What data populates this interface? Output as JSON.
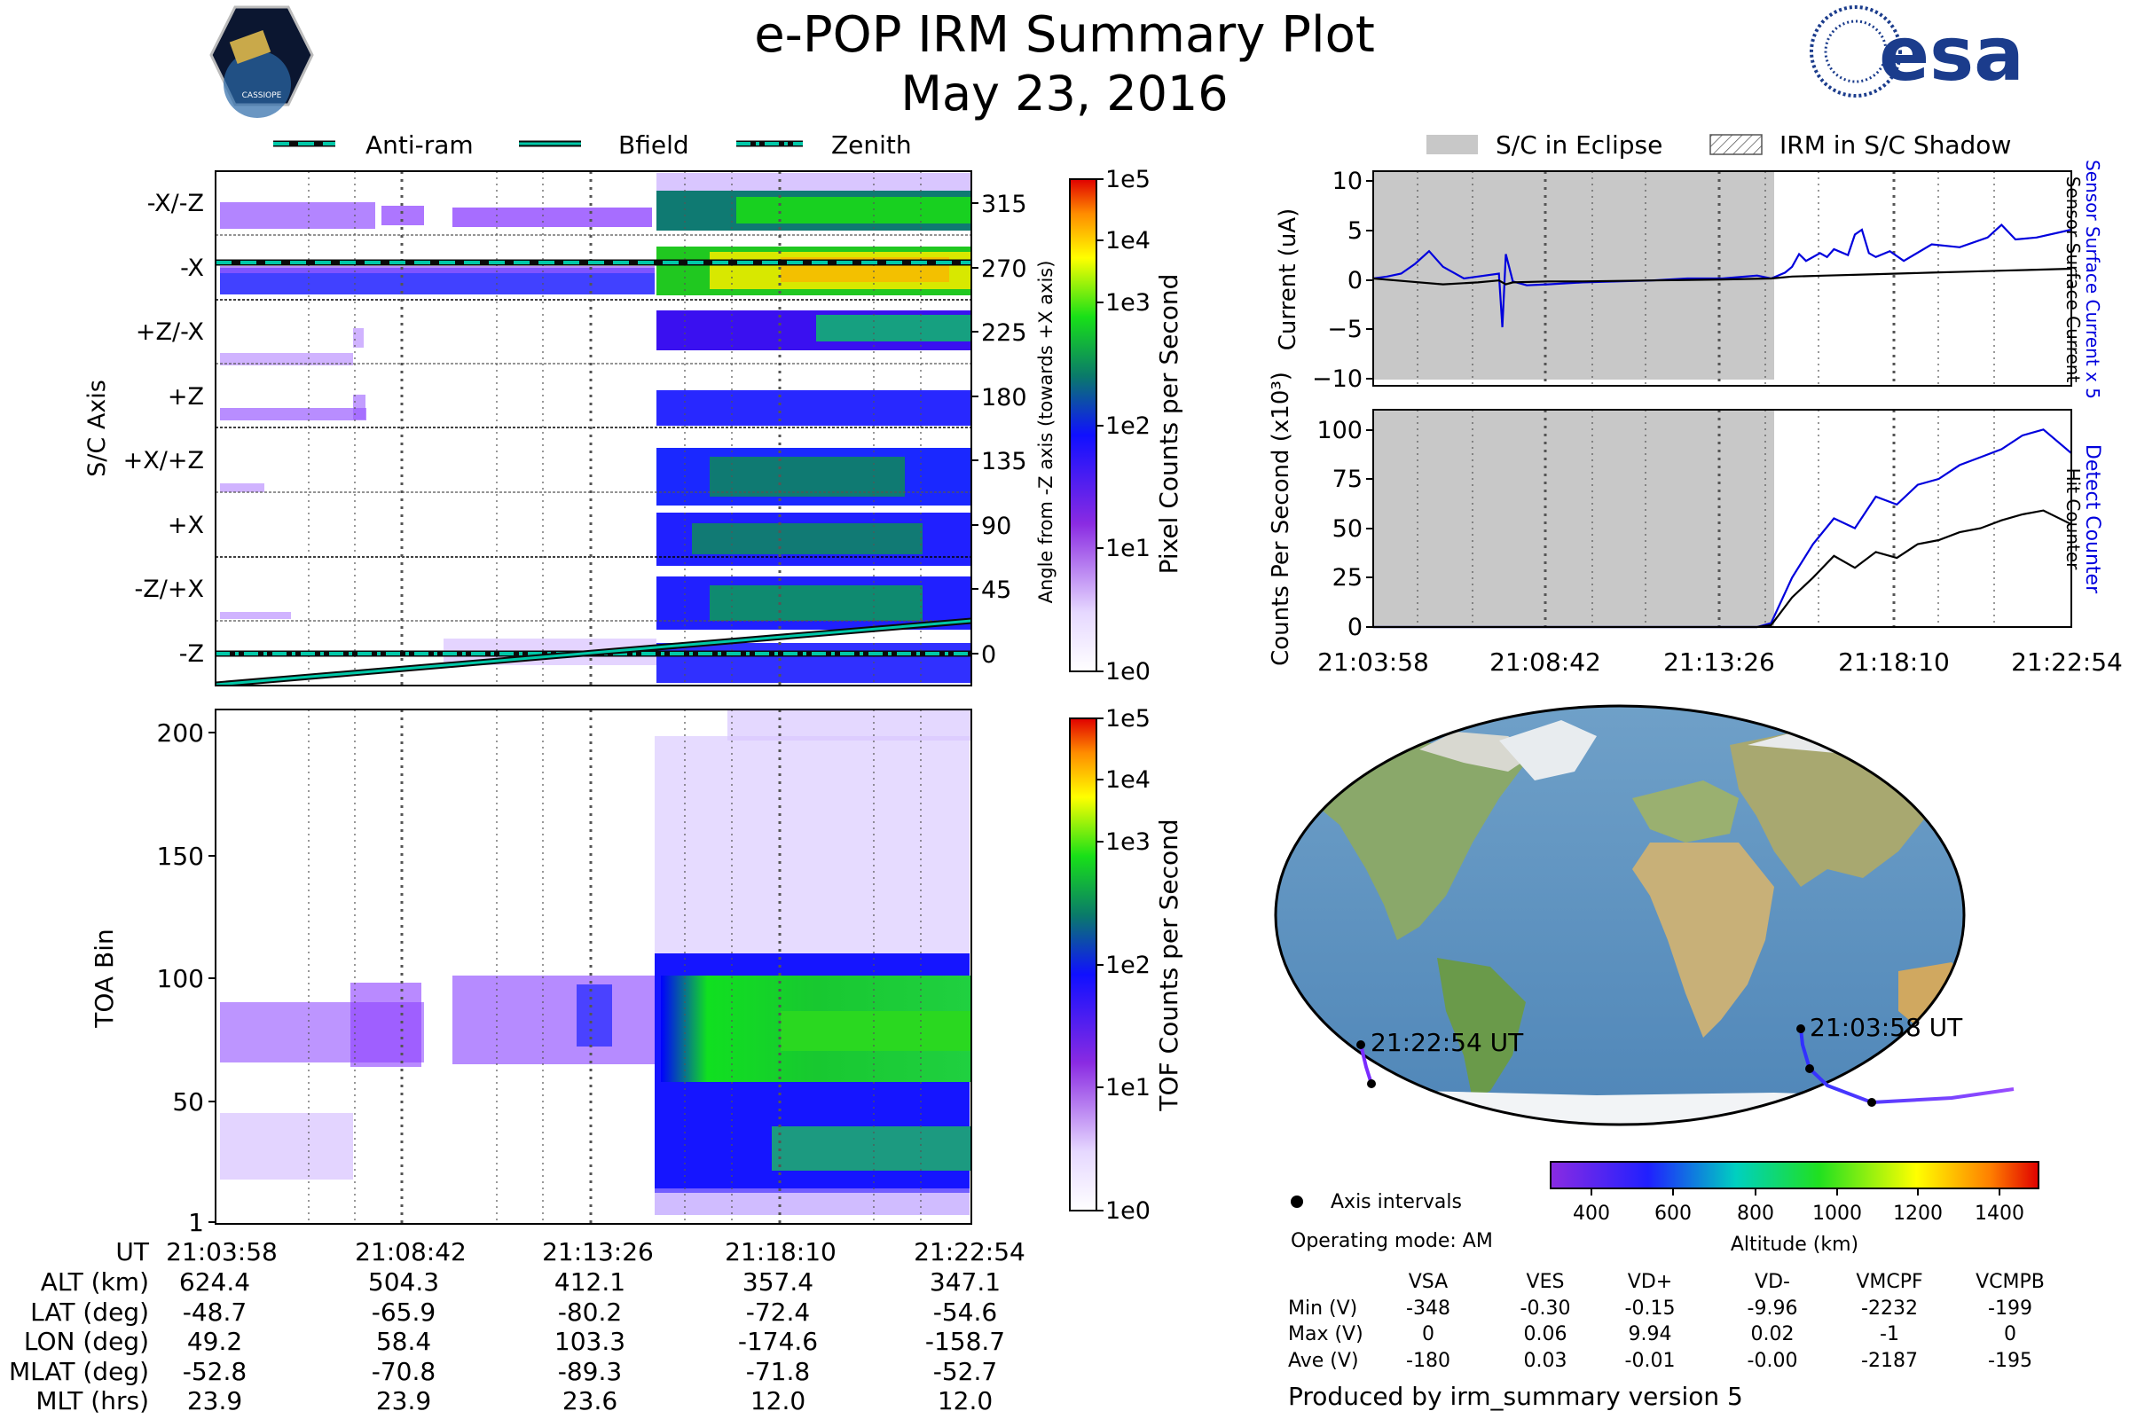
{
  "header": {
    "title": "e-POP IRM Summary Plot",
    "date": "May 23, 2016",
    "mission_logo_text": "CASSIOPE",
    "agency_logo_text": "esa"
  },
  "colors": {
    "dash_line": "#00c8a8",
    "current_blue": "#0000dd",
    "eclipse_gray": "#c8c8c8",
    "track_purple": "#7a2cff"
  },
  "legend_top_left": [
    {
      "label": "Anti-ram",
      "style": "dashed"
    },
    {
      "label": "Bfield",
      "style": "solid"
    },
    {
      "label": "Zenith",
      "style": "dashdot"
    }
  ],
  "legend_top_right": [
    {
      "label": "S/C in Eclipse",
      "style": "gray-fill"
    },
    {
      "label": "IRM in S/C Shadow",
      "style": "hatch"
    }
  ],
  "panel_axis": {
    "ylabel": "S/C Axis",
    "right_label": "Angle from -Z axis (towards +X axis)",
    "rows": [
      "-X/-Z",
      "-X",
      "+Z/-X",
      "+Z",
      "+X/+Z",
      "+X",
      "-Z/+X",
      "-Z"
    ],
    "right_ticks": [
      "315",
      "270",
      "225",
      "180",
      "135",
      "90",
      "45",
      "0"
    ],
    "colorbar_label": "Pixel Counts per Second",
    "colorbar_ticks": [
      "1e5",
      "1e4",
      "1e3",
      "1e2",
      "1e1",
      "1e0"
    ]
  },
  "panel_toa": {
    "ylabel": "TOA Bin",
    "yticks": [
      "200",
      "150",
      "100",
      "50",
      "1"
    ],
    "colorbar_label": "TOF Counts per Second",
    "colorbar_ticks": [
      "1e5",
      "1e4",
      "1e3",
      "1e2",
      "1e1",
      "1e0"
    ]
  },
  "ephemeris": {
    "rows": [
      {
        "label": "UT",
        "values": [
          "21:03:58",
          "21:08:42",
          "21:13:26",
          "21:18:10",
          "21:22:54"
        ]
      },
      {
        "label": "ALT (km)",
        "values": [
          "624.4",
          "504.3",
          "412.1",
          "357.4",
          "347.1"
        ]
      },
      {
        "label": "LAT (deg)",
        "values": [
          "-48.7",
          "-65.9",
          "-80.2",
          "-72.4",
          "-54.6"
        ]
      },
      {
        "label": "LON (deg)",
        "values": [
          "49.2",
          "58.4",
          "103.3",
          "-174.6",
          "-158.7"
        ]
      },
      {
        "label": "MLAT (deg)",
        "values": [
          "-52.8",
          "-70.8",
          "-89.3",
          "-71.8",
          "-52.7"
        ]
      },
      {
        "label": "MLT (hrs)",
        "values": [
          "23.9",
          "23.9",
          "23.6",
          "12.0",
          "12.0"
        ]
      }
    ]
  },
  "chart_data": [
    {
      "type": "line",
      "title": "Current",
      "ylabel": "Current (uA)",
      "ylim": [
        -11,
        11
      ],
      "yticks": [
        "10",
        "5",
        "0",
        "−5",
        "−10"
      ],
      "right_labels": [
        "Sensor Surface Current x 5",
        "Sensor Surface Current"
      ],
      "x_ticks": [
        "21:03:58",
        "21:08:42",
        "21:13:26",
        "21:18:10",
        "21:22:54"
      ],
      "eclipse_end_fraction": 0.57,
      "series": [
        {
          "name": "Sensor Surface Current x 5",
          "color": "#0000dd",
          "x_frac": [
            0,
            0.02,
            0.04,
            0.06,
            0.08,
            0.1,
            0.13,
            0.15,
            0.18,
            0.185,
            0.19,
            0.2,
            0.22,
            0.25,
            0.3,
            0.35,
            0.4,
            0.45,
            0.5,
            0.55,
            0.57,
            0.59,
            0.6,
            0.61,
            0.62,
            0.64,
            0.65,
            0.66,
            0.68,
            0.69,
            0.7,
            0.71,
            0.72,
            0.74,
            0.76,
            0.8,
            0.84,
            0.88,
            0.9,
            0.92,
            0.95,
            1.0
          ],
          "values": [
            0,
            0.2,
            0.5,
            1.5,
            2.8,
            1.2,
            0,
            0.2,
            0.5,
            -5,
            2.5,
            -0.3,
            -0.7,
            -0.6,
            -0.4,
            -0.3,
            -0.2,
            0,
            0,
            0.3,
            0,
            0.6,
            1.2,
            2.5,
            1.8,
            2.6,
            2.2,
            3,
            2.4,
            4.5,
            5,
            2.6,
            2.2,
            2.8,
            1.8,
            3.5,
            3.2,
            4.2,
            5.5,
            4,
            4.2,
            5
          ]
        },
        {
          "name": "Sensor Surface Current",
          "color": "#000000",
          "x_frac": [
            0,
            0.05,
            0.1,
            0.15,
            0.18,
            0.19,
            0.2,
            0.25,
            0.3,
            0.4,
            0.5,
            0.57,
            0.6,
            0.65,
            0.7,
            0.75,
            0.8,
            0.85,
            0.9,
            0.95,
            1.0
          ],
          "values": [
            0,
            -0.3,
            -0.6,
            -0.4,
            -0.2,
            -0.6,
            -0.4,
            -0.3,
            -0.3,
            -0.2,
            -0.1,
            0,
            0.2,
            0.3,
            0.4,
            0.5,
            0.6,
            0.7,
            0.8,
            0.9,
            1
          ]
        }
      ]
    },
    {
      "type": "line",
      "title": "Counts Per Second",
      "ylabel": "Counts Per Second (x10³)",
      "ylim": [
        0,
        110
      ],
      "yticks": [
        "100",
        "75",
        "50",
        "25",
        "0"
      ],
      "right_labels": [
        "Detect Counter",
        "Hit Counter"
      ],
      "x_ticks": [
        "21:03:58",
        "21:08:42",
        "21:13:26",
        "21:18:10",
        "21:22:54"
      ],
      "eclipse_end_fraction": 0.57,
      "series": [
        {
          "name": "Detect Counter",
          "color": "#0000dd",
          "x_frac": [
            0,
            0.55,
            0.57,
            0.6,
            0.63,
            0.66,
            0.69,
            0.72,
            0.75,
            0.78,
            0.81,
            0.84,
            0.87,
            0.9,
            0.93,
            0.96,
            1.0
          ],
          "values": [
            0,
            0,
            2,
            25,
            42,
            55,
            50,
            66,
            62,
            72,
            75,
            82,
            86,
            90,
            97,
            100,
            88
          ]
        },
        {
          "name": "Hit Counter",
          "color": "#000000",
          "x_frac": [
            0,
            0.55,
            0.57,
            0.6,
            0.63,
            0.66,
            0.69,
            0.72,
            0.75,
            0.78,
            0.81,
            0.84,
            0.87,
            0.9,
            0.93,
            0.96,
            1.0
          ],
          "values": [
            0,
            0,
            1,
            15,
            25,
            36,
            30,
            38,
            35,
            42,
            44,
            48,
            50,
            54,
            57,
            59,
            52
          ]
        }
      ]
    }
  ],
  "map": {
    "start_label": "21:03:58 UT",
    "end_label": "21:22:54 UT",
    "legend_dot_label": "Axis intervals",
    "operating_mode": "Operating mode: AM",
    "altitude_label": "Altitude (km)",
    "altitude_ticks": [
      "400",
      "600",
      "800",
      "1000",
      "1200",
      "1400"
    ]
  },
  "voltages": {
    "columns": [
      "VSA",
      "VES",
      "VD+",
      "VD-",
      "VMCPF",
      "VCMPB"
    ],
    "rows": [
      {
        "label": "Min (V)",
        "values": [
          "-348",
          "-0.30",
          "-0.15",
          "-9.96",
          "-2232",
          "-199"
        ]
      },
      {
        "label": "Max (V)",
        "values": [
          "0",
          "0.06",
          "9.94",
          "0.02",
          "-1",
          "0"
        ]
      },
      {
        "label": "Ave (V)",
        "values": [
          "-180",
          "0.03",
          "-0.01",
          "-0.00",
          "-2187",
          "-195"
        ]
      }
    ]
  },
  "footer": "Produced by irm_summary version 5"
}
